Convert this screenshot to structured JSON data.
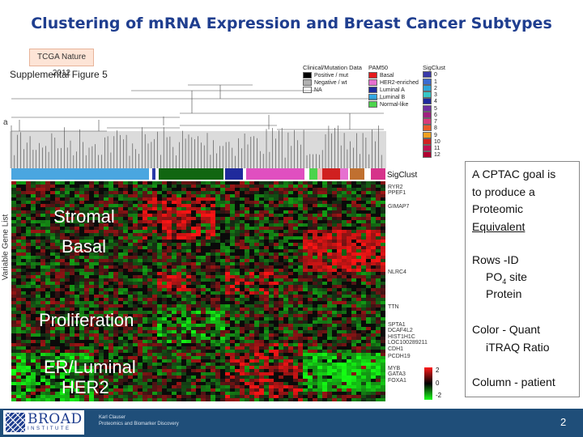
{
  "slide": {
    "title": "Clustering of mRNA Expression and Breast Cancer Subtypes",
    "source_tag": "TCGA Nature 2012",
    "page_number": "2"
  },
  "figure": {
    "supplemental_label": "Supplemental Figure 5",
    "panel_letter": "a",
    "legend_clinical": {
      "header": "Clinical/Mutation Data",
      "items": [
        {
          "label": "Positive / mut",
          "color": "#000000"
        },
        {
          "label": "Negative / wt",
          "color": "#b0b0b0"
        },
        {
          "label": "NA",
          "color": "#ffffff"
        }
      ]
    },
    "legend_pam50": {
      "header": "PAM50",
      "items": [
        {
          "label": "Basal",
          "color": "#e41a1c"
        },
        {
          "label": "HER2-enriched",
          "color": "#e66fd0"
        },
        {
          "label": "Luminal A",
          "color": "#1f2a9c"
        },
        {
          "label": "Luminal B",
          "color": "#32a9e6"
        },
        {
          "label": "Normal-like",
          "color": "#4cd44c"
        }
      ]
    },
    "legend_sigclust": {
      "header": "SigClust",
      "items": [
        {
          "label": "0",
          "color": "#3a3aa8"
        },
        {
          "label": "1",
          "color": "#3a6ad0"
        },
        {
          "label": "2",
          "color": "#2ea4d8"
        },
        {
          "label": "3",
          "color": "#36c6c6"
        },
        {
          "label": "4",
          "color": "#1f2a9c"
        },
        {
          "label": "5",
          "color": "#7030a0"
        },
        {
          "label": "6",
          "color": "#a02080"
        },
        {
          "label": "7",
          "color": "#d63a7a"
        },
        {
          "label": "8",
          "color": "#e85a2a"
        },
        {
          "label": "9",
          "color": "#f0a020"
        },
        {
          "label": "10",
          "color": "#d02020"
        },
        {
          "label": "11",
          "color": "#c01050"
        },
        {
          "label": "12",
          "color": "#b00030"
        }
      ]
    },
    "sigclust_row_label": "SigClust",
    "y_axis_label": "Variable Gene List",
    "cluster_labels": [
      "Stromal",
      "Basal",
      "Proliferation",
      "ER/Luminal",
      "HER2"
    ],
    "gene_labels": {
      "top": [
        "RYR2",
        "PPEF1",
        "",
        "GIMAP7"
      ],
      "mid": [
        "NLRC4"
      ],
      "mid2": [
        "TTN"
      ],
      "lower": [
        "SPTA1",
        "DCAF4L2",
        "HIST1H1C",
        "LOC100289211",
        "CDH1",
        "PCDH19"
      ],
      "bottom": [
        "MYB",
        "GATA3",
        "FOXA1"
      ]
    },
    "color_scale": {
      "labels": [
        "2",
        "0",
        "-2"
      ],
      "colors": [
        "#ff1a1a",
        "#000000",
        "#1aff1a"
      ]
    }
  },
  "callout": {
    "goal_line1": "A CPTAC goal is",
    "goal_line2": "to produce a",
    "goal_line3": "Proteomic",
    "goal_line4": "Equivalent",
    "rows_head": "Rows -ID",
    "rows_po": "PO",
    "rows_po_sub": "4",
    "rows_po_rest": " site",
    "rows_protein": "Protein",
    "color_head": "Color - Quant",
    "color_sub": "iTRAQ Ratio",
    "column": "Column - patient"
  },
  "footer": {
    "logo_word": "BROAD",
    "logo_sub": "INSTITUTE",
    "presenter": "Karl Clauser",
    "presenter_group": "Proteomics and Biomarker Discovery"
  }
}
